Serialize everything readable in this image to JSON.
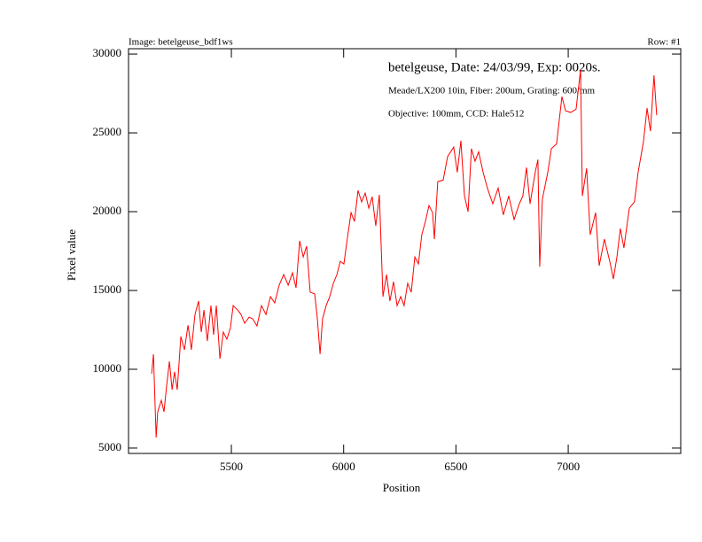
{
  "chart_data": {
    "type": "line",
    "header_left": "Image: betelgeuse_bdf1ws",
    "header_right": "Row: #1",
    "title": "betelgeuse, Date: 24/03/99, Exp: 0020s.",
    "annotations": [
      "Meade/LX200 10in, Fiber: 200um, Grating: 600/mm",
      "Objective: 100mm, CCD: Hale512"
    ],
    "xlabel": "Position",
    "ylabel": "Pixel value",
    "xlim": [
      5042,
      7501
    ],
    "ylim": [
      4660,
      30340
    ],
    "xticks": [
      5500,
      6000,
      6500,
      7000
    ],
    "yticks": [
      5000,
      10000,
      15000,
      20000,
      25000,
      30000
    ],
    "series": [
      {
        "color": "#ff0000",
        "x": [
          5145,
          5153,
          5165,
          5172,
          5188,
          5200,
          5212,
          5224,
          5236,
          5247,
          5259,
          5275,
          5291,
          5307,
          5322,
          5338,
          5354,
          5366,
          5378,
          5393,
          5409,
          5421,
          5433,
          5449,
          5464,
          5480,
          5496,
          5508,
          5528,
          5543,
          5559,
          5579,
          5595,
          5614,
          5634,
          5654,
          5674,
          5693,
          5713,
          5733,
          5753,
          5772,
          5788,
          5804,
          5820,
          5835,
          5851,
          5871,
          5883,
          5895,
          5906,
          5922,
          5938,
          5954,
          5970,
          5985,
          6001,
          6017,
          6033,
          6048,
          6064,
          6080,
          6096,
          6112,
          6127,
          6143,
          6159,
          6175,
          6191,
          6206,
          6222,
          6238,
          6254,
          6269,
          6285,
          6301,
          6317,
          6333,
          6348,
          6364,
          6380,
          6396,
          6404,
          6419,
          6443,
          6463,
          6490,
          6506,
          6522,
          6538,
          6554,
          6569,
          6585,
          6601,
          6621,
          6640,
          6664,
          6688,
          6711,
          6735,
          6759,
          6782,
          6798,
          6814,
          6830,
          6853,
          6865,
          6873,
          6885,
          6909,
          6925,
          6948,
          6972,
          6988,
          7011,
          7035,
          7055,
          7063,
          7082,
          7098,
          7122,
          7138,
          7161,
          7185,
          7201,
          7217,
          7232,
          7248,
          7272,
          7295,
          7311,
          7335,
          7351,
          7366,
          7382,
          7394
        ],
        "values": [
          9720,
          10960,
          5670,
          7300,
          8030,
          7300,
          8990,
          10500,
          8700,
          9830,
          8700,
          12080,
          11240,
          12800,
          11240,
          13480,
          14330,
          12360,
          13760,
          11800,
          14040,
          12190,
          14040,
          10670,
          12360,
          11910,
          12640,
          14040,
          13760,
          13480,
          12920,
          13310,
          13200,
          12750,
          14040,
          13480,
          14610,
          14210,
          15340,
          16010,
          15340,
          16120,
          15170,
          18150,
          17130,
          17810,
          14890,
          14780,
          13200,
          10960,
          13200,
          14040,
          14610,
          15450,
          16010,
          16850,
          16680,
          18370,
          19940,
          19380,
          21350,
          20620,
          21180,
          20220,
          20950,
          19100,
          21070,
          14610,
          16010,
          14330,
          15560,
          14040,
          14610,
          14040,
          15450,
          14890,
          17130,
          16680,
          18540,
          19380,
          20390,
          19940,
          18260,
          21910,
          22000,
          23500,
          24100,
          22500,
          24500,
          21000,
          20000,
          24000,
          23200,
          23800,
          22500,
          21500,
          20500,
          21500,
          19800,
          21000,
          19500,
          20500,
          21000,
          22800,
          20500,
          22500,
          23300,
          16500,
          20800,
          22500,
          24000,
          24300,
          27300,
          26400,
          26300,
          26500,
          29000,
          21000,
          22750,
          18540,
          19940,
          16570,
          18260,
          16850,
          15730,
          17130,
          18930,
          17700,
          20220,
          20620,
          22470,
          24440,
          26570,
          25110,
          28650,
          26120
        ]
      }
    ]
  }
}
